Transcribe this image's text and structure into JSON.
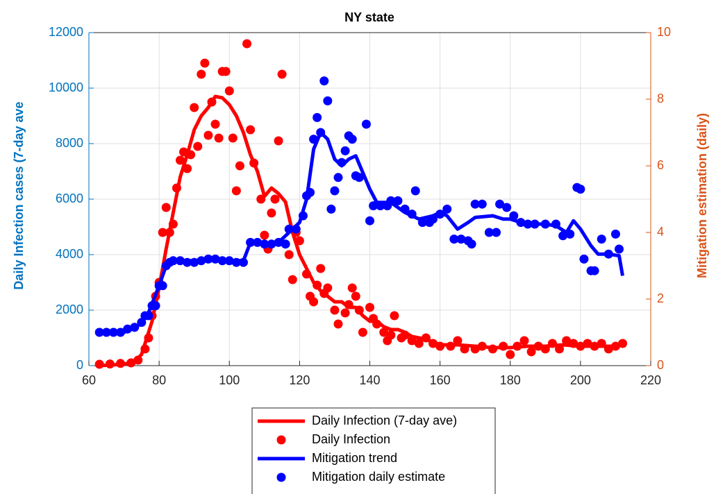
{
  "chart_data": {
    "type": "line",
    "title": "NY state",
    "ylabel": "Daily Infection cases (7-day ave",
    "y2label": "Mitigation estimation (daily)",
    "xlim": [
      60,
      220
    ],
    "xticks": [
      60,
      80,
      100,
      120,
      140,
      160,
      180,
      200,
      220
    ],
    "ylim": [
      0,
      12000
    ],
    "yticks": [
      0,
      2000,
      4000,
      6000,
      8000,
      10000,
      12000
    ],
    "y2lim": [
      0,
      10
    ],
    "y2ticks": [
      0,
      2,
      4,
      6,
      8,
      10
    ],
    "grid": true,
    "legend": "bottom",
    "ycolor": "#0072bd",
    "y2color": "#d95319",
    "series": [
      {
        "name": "Daily Infection (7-day ave)",
        "type": "line",
        "color": "#ff0000",
        "x": [
          63,
          70,
          73,
          75,
          78,
          80,
          82,
          84,
          86,
          88,
          90,
          92,
          94,
          96,
          98,
          100,
          102,
          104,
          106,
          108,
          110,
          112,
          114,
          116,
          118,
          120,
          122,
          124,
          126,
          128,
          130,
          132,
          134,
          136,
          138,
          140,
          142,
          144,
          146,
          148,
          150,
          152,
          154,
          156,
          158,
          160,
          165,
          170,
          175,
          180,
          185,
          190,
          195,
          200,
          205,
          210,
          213
        ],
        "values": [
          0,
          50,
          150,
          400,
          1600,
          2800,
          4200,
          5500,
          6800,
          7600,
          8500,
          9000,
          9300,
          9700,
          9650,
          9400,
          9000,
          8400,
          7600,
          7000,
          6100,
          6400,
          6200,
          5900,
          4800,
          4000,
          3500,
          3000,
          2700,
          2500,
          2300,
          2300,
          2100,
          2100,
          1800,
          1600,
          1600,
          1400,
          1300,
          1300,
          1200,
          1050,
          1000,
          950,
          850,
          750,
          750,
          700,
          650,
          650,
          700,
          700,
          750,
          700,
          700,
          700,
          750
        ]
      },
      {
        "name": "Daily Infection",
        "type": "scatter",
        "color": "#ff0000",
        "x": [
          63,
          66,
          69,
          72,
          74,
          76,
          77,
          78,
          79,
          80,
          81,
          82,
          83,
          84,
          85,
          86,
          87,
          88,
          89,
          90,
          91,
          92,
          93,
          94,
          95,
          96,
          97,
          98,
          99,
          100,
          101,
          102,
          103,
          105,
          106,
          107,
          109,
          110,
          111,
          112,
          113,
          114,
          115,
          117,
          118,
          119,
          120,
          122,
          123,
          124,
          125,
          126,
          127,
          128,
          130,
          131,
          133,
          134,
          135,
          136,
          137,
          138,
          140,
          141,
          142,
          144,
          145,
          146,
          147,
          149,
          150,
          152,
          154,
          156,
          158,
          160,
          163,
          165,
          167,
          170,
          172,
          175,
          178,
          180,
          182,
          184,
          186,
          188,
          190,
          192,
          194,
          196,
          198,
          200,
          202,
          204,
          206,
          208,
          210,
          212
        ],
        "values": [
          50,
          60,
          80,
          100,
          200,
          600,
          1000,
          1800,
          2500,
          3000,
          4800,
          5700,
          4800,
          5100,
          6400,
          7400,
          7700,
          7100,
          7600,
          9300,
          7900,
          10500,
          10900,
          8300,
          9500,
          8700,
          8200,
          10600,
          10600,
          9900,
          8200,
          6300,
          7200,
          11600,
          8500,
          7300,
          6000,
          4700,
          4200,
          5500,
          6000,
          8100,
          10500,
          4000,
          3100,
          4800,
          4500,
          3300,
          2500,
          2300,
          2900,
          3500,
          2600,
          2800,
          2000,
          1500,
          1900,
          2200,
          2800,
          2500,
          2000,
          1200,
          2100,
          1700,
          1500,
          1200,
          900,
          1100,
          1800,
          1000,
          1100,
          900,
          800,
          1000,
          800,
          700,
          700,
          900,
          600,
          600,
          700,
          600,
          700,
          400,
          700,
          900,
          500,
          700,
          600,
          800,
          600,
          900,
          800,
          700,
          800,
          700,
          800,
          600,
          700,
          800
        ]
      },
      {
        "name": "Mitigation trend",
        "type": "line",
        "color": "#0000ff",
        "axis": "y2",
        "x": [
          63,
          70,
          74,
          77,
          80,
          82,
          84,
          90,
          95,
          100,
          104,
          106,
          110,
          114,
          116,
          118,
          120,
          122,
          124,
          126,
          128,
          130,
          132,
          134,
          136,
          138,
          140,
          142,
          146,
          150,
          154,
          158,
          160,
          162,
          165,
          168,
          170,
          175,
          178,
          180,
          183,
          186,
          190,
          193,
          196,
          198,
          200,
          203,
          205,
          208,
          211,
          212
        ],
        "values": [
          1.0,
          1.0,
          1.2,
          1.6,
          2.4,
          3.0,
          3.15,
          3.15,
          3.2,
          3.15,
          3.15,
          3.7,
          3.65,
          3.7,
          3.9,
          4.1,
          4.3,
          5.0,
          6.5,
          7.0,
          6.8,
          6.2,
          6.0,
          6.2,
          6.3,
          5.8,
          5.3,
          4.9,
          4.9,
          4.6,
          4.4,
          4.5,
          4.6,
          4.5,
          4.1,
          4.3,
          4.45,
          4.5,
          4.4,
          4.4,
          4.3,
          4.25,
          4.25,
          4.2,
          4.0,
          4.35,
          4.1,
          3.6,
          3.35,
          3.35,
          3.3,
          2.7
        ]
      },
      {
        "name": "Mitigation daily estimate",
        "type": "scatter",
        "color": "#0000ff",
        "axis": "y2",
        "x": [
          63,
          65,
          67,
          69,
          71,
          73,
          75,
          76,
          77,
          78,
          79,
          80,
          81,
          82,
          83,
          84,
          86,
          88,
          90,
          92,
          94,
          96,
          98,
          100,
          102,
          104,
          106,
          108,
          110,
          112,
          114,
          116,
          117,
          119,
          121,
          122,
          123,
          124,
          125,
          126,
          127,
          128,
          129,
          130,
          131,
          132,
          133,
          134,
          135,
          136,
          137,
          139,
          140,
          141,
          143,
          145,
          146,
          148,
          150,
          152,
          153,
          155,
          157,
          158,
          160,
          162,
          164,
          166,
          168,
          169,
          170,
          172,
          174,
          176,
          177,
          179,
          181,
          183,
          185,
          187,
          190,
          193,
          195,
          197,
          199,
          200,
          201,
          203,
          204,
          206,
          208,
          210,
          211
        ],
        "values": [
          1.0,
          1.0,
          1.0,
          1.0,
          1.1,
          1.15,
          1.3,
          1.5,
          1.5,
          1.8,
          1.8,
          2.4,
          2.4,
          3.0,
          3.1,
          3.15,
          3.15,
          3.1,
          3.1,
          3.15,
          3.2,
          3.2,
          3.15,
          3.15,
          3.1,
          3.1,
          3.7,
          3.7,
          3.65,
          3.65,
          3.7,
          3.65,
          4.1,
          4.1,
          4.5,
          5.1,
          5.2,
          6.8,
          7.45,
          7.0,
          8.55,
          7.95,
          4.7,
          5.25,
          5.65,
          6.1,
          6.45,
          6.9,
          6.8,
          5.7,
          5.65,
          7.25,
          4.35,
          4.8,
          4.8,
          4.8,
          4.95,
          4.95,
          4.7,
          4.55,
          5.25,
          4.3,
          4.3,
          4.4,
          4.55,
          4.7,
          3.8,
          3.8,
          3.75,
          3.65,
          4.85,
          4.85,
          4.0,
          4.0,
          4.85,
          4.75,
          4.5,
          4.3,
          4.25,
          4.25,
          4.25,
          4.25,
          3.9,
          3.95,
          5.35,
          5.3,
          3.2,
          2.85,
          2.85,
          3.8,
          3.35,
          3.95,
          3.5
        ]
      }
    ]
  }
}
